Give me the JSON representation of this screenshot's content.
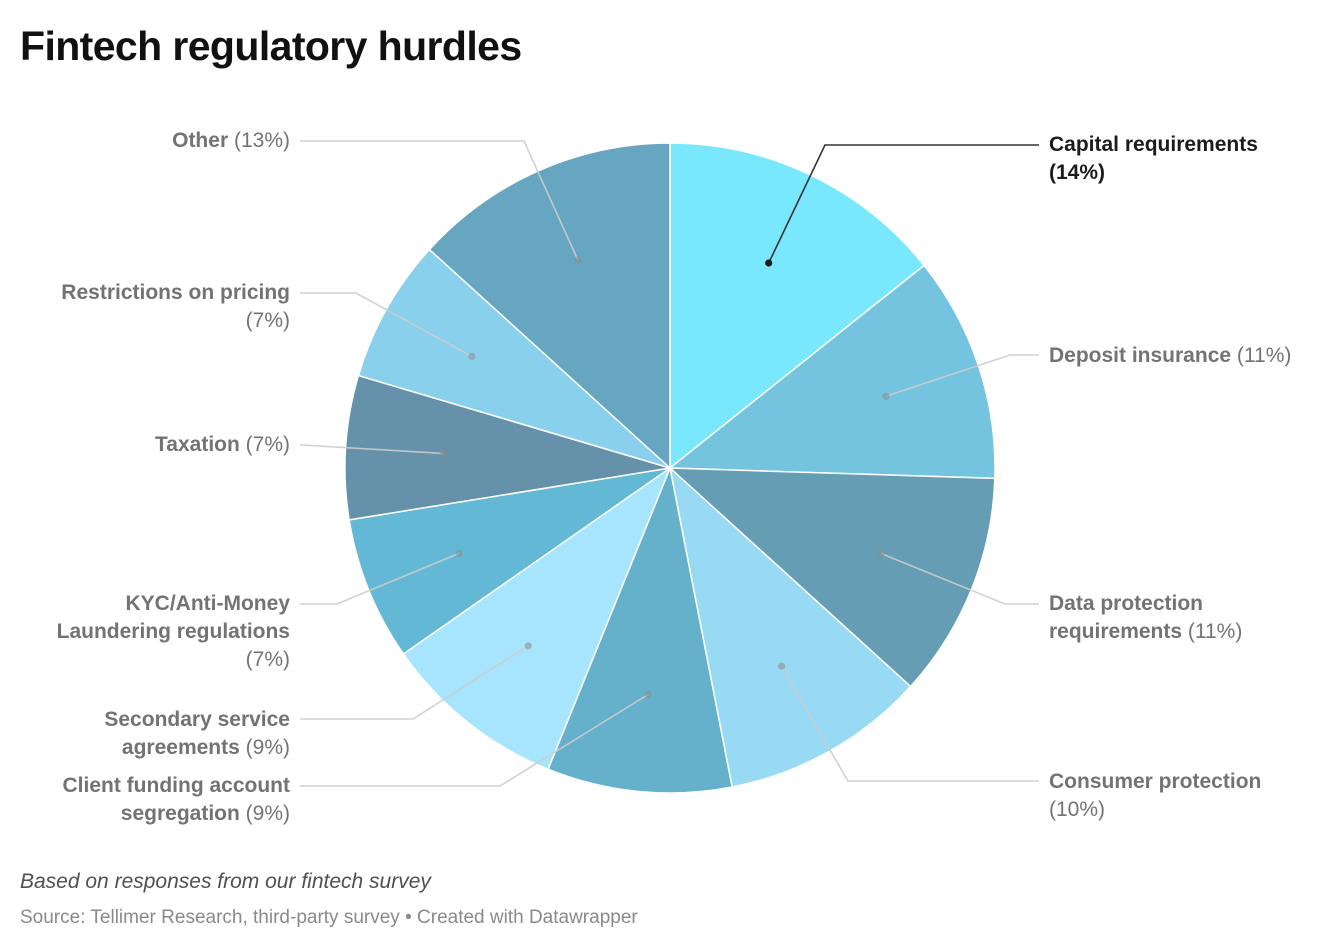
{
  "title": "Fintech regulatory hurdles",
  "notes": "Based on responses from our fintech survey",
  "footer": {
    "source_label": "Source:",
    "source": "Tellimer Research, third-party survey",
    "separator": "•",
    "credit": "Created with Datawrapper"
  },
  "chart_data": {
    "type": "pie",
    "title": "Fintech regulatory hurdles",
    "slices": [
      {
        "label": "Capital requirements",
        "value_label": "(14%)",
        "value": 14,
        "color": "#7ae8fc",
        "highlight": true
      },
      {
        "label": "Deposit insurance",
        "value_label": "(11%)",
        "value": 11,
        "color": "#74c3df",
        "highlight": false
      },
      {
        "label": "Data protection requirements",
        "value_label": "(11%)",
        "value": 11,
        "color": "#659db4",
        "highlight": false
      },
      {
        "label": "Consumer protection",
        "value_label": "(10%)",
        "value": 10,
        "color": "#98daf3",
        "highlight": false
      },
      {
        "label": "Client funding account segregation",
        "value_label": "(9%)",
        "value": 9,
        "color": "#65b0cb",
        "highlight": false
      },
      {
        "label": "Secondary service agreements",
        "value_label": "(9%)",
        "value": 9,
        "color": "#a6e5fd",
        "highlight": false
      },
      {
        "label": "KYC/Anti-Money Laundering regulations",
        "value_label": "(7%)",
        "value": 7,
        "color": "#62b8d5",
        "highlight": false
      },
      {
        "label": "Taxation",
        "value_label": "(7%)",
        "value": 7,
        "color": "#6592aa",
        "highlight": false
      },
      {
        "label": "Restrictions on pricing",
        "value_label": "(7%)",
        "value": 7,
        "color": "#88d0ec",
        "highlight": false
      },
      {
        "label": "Other",
        "value_label": "(13%)",
        "value": 13,
        "color": "#67a6c1",
        "highlight": false
      }
    ],
    "start_angle": "12 o'clock",
    "direction": "clockwise",
    "legend": "none (direct labels with leader lines)"
  }
}
